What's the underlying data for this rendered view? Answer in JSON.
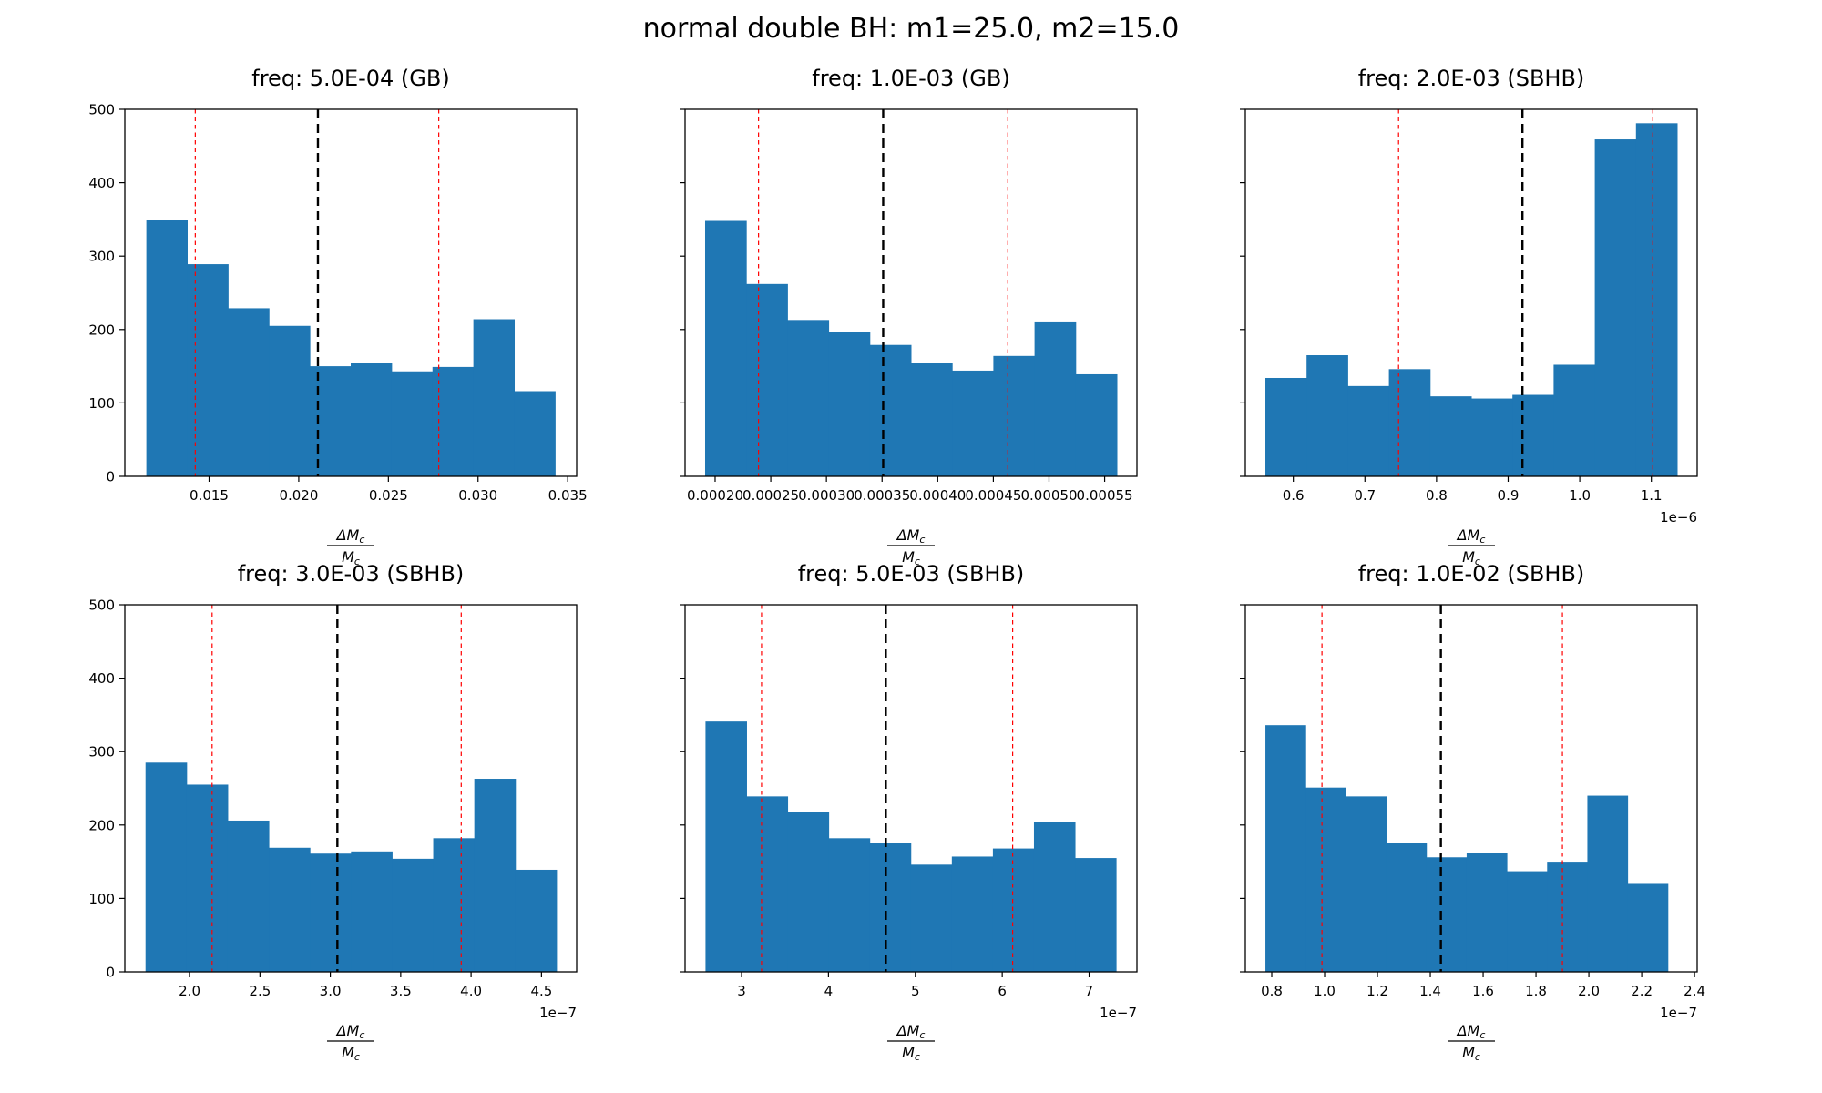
{
  "figure_title": "normal double BH: m1=25.0, m2=15.0",
  "colors": {
    "bar": "#1f77b4",
    "red_vline": "#ff0000",
    "black_vline": "#000000",
    "axis": "#000000"
  },
  "x_axis_label": {
    "numerator": "ΔM",
    "numerator_sub": "c",
    "denominator": "M",
    "denominator_sub": "c",
    "plain": "ΔMc/Mc"
  },
  "chart_data": [
    {
      "type": "bar",
      "title": "freq: 5.0E-04 (GB)",
      "bin_start": 0.0115,
      "bin_end": 0.0343,
      "values": [
        349,
        289,
        229,
        205,
        150,
        154,
        143,
        149,
        214,
        116
      ],
      "xlim": [
        0.0103,
        0.0355
      ],
      "xticks": [
        0.015,
        0.02,
        0.025,
        0.03,
        0.035
      ],
      "xtick_labels": [
        "0.015",
        "0.020",
        "0.025",
        "0.030",
        "0.035"
      ],
      "ylim": [
        0,
        500
      ],
      "yticks": [
        0,
        100,
        200,
        300,
        400,
        500
      ],
      "show_ytick_labels": true,
      "x_offset_text": "",
      "red_vlines": [
        0.01423,
        0.02781
      ],
      "black_vline": 0.02107
    },
    {
      "type": "bar",
      "title": "freq: 1.0E-03 (GB)",
      "bin_start": 0.000191,
      "bin_end": 0.000561,
      "values": [
        348,
        262,
        213,
        197,
        179,
        154,
        144,
        164,
        211,
        139
      ],
      "xlim": [
        0.000173,
        0.000579
      ],
      "xticks": [
        0.0002,
        0.00025,
        0.0003,
        0.00035,
        0.0004,
        0.00045,
        0.0005,
        0.00055
      ],
      "xtick_labels": [
        "0.00020",
        "0.00025",
        "0.00030",
        "0.00035",
        "0.00040",
        "0.00045",
        "0.00050",
        "0.00055"
      ],
      "ylim": [
        0,
        500
      ],
      "yticks": [
        0,
        100,
        200,
        300,
        400,
        500
      ],
      "show_ytick_labels": false,
      "x_offset_text": "",
      "red_vlines": [
        0.000239,
        0.000463
      ],
      "black_vline": 0.000351
    },
    {
      "type": "bar",
      "title": "freq: 2.0E-03 (SBHB)",
      "bin_start": 0.561,
      "bin_end": 1.136,
      "values": [
        134,
        165,
        123,
        146,
        109,
        106,
        111,
        152,
        459,
        481
      ],
      "xlim": [
        0.533,
        1.164
      ],
      "xticks": [
        0.6,
        0.7,
        0.8,
        0.9,
        1.0,
        1.1
      ],
      "xtick_labels": [
        "0.6",
        "0.7",
        "0.8",
        "0.9",
        "1.0",
        "1.1"
      ],
      "ylim": [
        0,
        500
      ],
      "yticks": [
        0,
        100,
        200,
        300,
        400,
        500
      ],
      "show_ytick_labels": false,
      "x_offset_text": "1e−6",
      "red_vlines": [
        0.747,
        1.102
      ],
      "black_vline": 0.92
    },
    {
      "type": "bar",
      "title": "freq: 3.0E-03 (SBHB)",
      "bin_start": 1.687,
      "bin_end": 4.607,
      "values": [
        285,
        255,
        206,
        169,
        161,
        164,
        154,
        182,
        263,
        139
      ],
      "xlim": [
        1.54,
        4.75
      ],
      "xticks": [
        2.0,
        2.5,
        3.0,
        3.5,
        4.0,
        4.5
      ],
      "xtick_labels": [
        "2.0",
        "2.5",
        "3.0",
        "3.5",
        "4.0",
        "4.5"
      ],
      "ylim": [
        0,
        500
      ],
      "yticks": [
        0,
        100,
        200,
        300,
        400,
        500
      ],
      "show_ytick_labels": true,
      "x_offset_text": "1e−7",
      "red_vlines": [
        2.16,
        3.93
      ],
      "black_vline": 3.05
    },
    {
      "type": "bar",
      "title": "freq: 5.0E-03 (SBHB)",
      "bin_start": 2.585,
      "bin_end": 7.31,
      "values": [
        341,
        239,
        218,
        182,
        175,
        146,
        157,
        168,
        204,
        155
      ],
      "xlim": [
        2.35,
        7.55
      ],
      "xticks": [
        3,
        4,
        5,
        6,
        7
      ],
      "xtick_labels": [
        "3",
        "4",
        "5",
        "6",
        "7"
      ],
      "ylim": [
        0,
        500
      ],
      "yticks": [
        0,
        100,
        200,
        300,
        400,
        500
      ],
      "show_ytick_labels": false,
      "x_offset_text": "1e−7",
      "red_vlines": [
        3.23,
        6.12
      ],
      "black_vline": 4.66
    },
    {
      "type": "bar",
      "title": "freq: 1.0E-02 (SBHB)",
      "bin_start": 0.776,
      "bin_end": 2.299,
      "values": [
        336,
        251,
        239,
        175,
        156,
        162,
        137,
        150,
        240,
        121
      ],
      "xlim": [
        0.7,
        2.41
      ],
      "xticks": [
        0.8,
        1.0,
        1.2,
        1.4,
        1.6,
        1.8,
        2.0,
        2.2,
        2.4
      ],
      "xtick_labels": [
        "0.8",
        "1.0",
        "1.2",
        "1.4",
        "1.6",
        "1.8",
        "2.0",
        "2.2",
        "2.4"
      ],
      "ylim": [
        0,
        500
      ],
      "yticks": [
        0,
        100,
        200,
        300,
        400,
        500
      ],
      "show_ytick_labels": false,
      "x_offset_text": "1e−7",
      "red_vlines": [
        0.99,
        1.9
      ],
      "black_vline": 1.44
    }
  ]
}
